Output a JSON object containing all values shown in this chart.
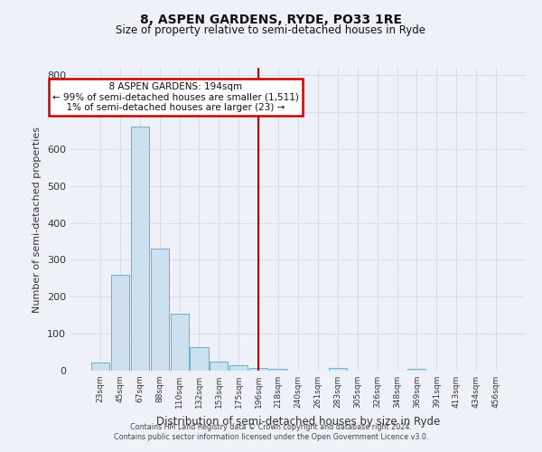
{
  "title": "8, ASPEN GARDENS, RYDE, PO33 1RE",
  "subtitle": "Size of property relative to semi-detached houses in Ryde",
  "xlabel": "Distribution of semi-detached houses by size in Ryde",
  "ylabel": "Number of semi-detached properties",
  "bar_labels": [
    "23sqm",
    "45sqm",
    "67sqm",
    "88sqm",
    "110sqm",
    "132sqm",
    "153sqm",
    "175sqm",
    "196sqm",
    "218sqm",
    "240sqm",
    "261sqm",
    "283sqm",
    "305sqm",
    "326sqm",
    "348sqm",
    "369sqm",
    "391sqm",
    "413sqm",
    "434sqm",
    "456sqm"
  ],
  "bar_values": [
    22,
    260,
    660,
    330,
    155,
    63,
    25,
    15,
    8,
    5,
    0,
    0,
    8,
    0,
    0,
    0,
    5,
    0,
    0,
    0,
    0
  ],
  "bar_color": "#cce0f0",
  "bar_edge_color": "#6aafd6",
  "vline_x": 8,
  "vline_color": "#cc0000",
  "ylim": [
    0,
    820
  ],
  "yticks": [
    0,
    100,
    200,
    300,
    400,
    500,
    600,
    700,
    800
  ],
  "annotation_title": "8 ASPEN GARDENS: 194sqm",
  "annotation_line1": "← 99% of semi-detached houses are smaller (1,511)",
  "annotation_line2": "1% of semi-detached houses are larger (23) →",
  "annotation_box_color": "#ffffff",
  "annotation_box_edge": "#cc0000",
  "footer_line1": "Contains HM Land Registry data © Crown copyright and database right 2024.",
  "footer_line2": "Contains public sector information licensed under the Open Government Licence v3.0.",
  "bg_color": "#eef2f8",
  "grid_color": "#d8dde8",
  "grid_bg": "#e8eef8"
}
